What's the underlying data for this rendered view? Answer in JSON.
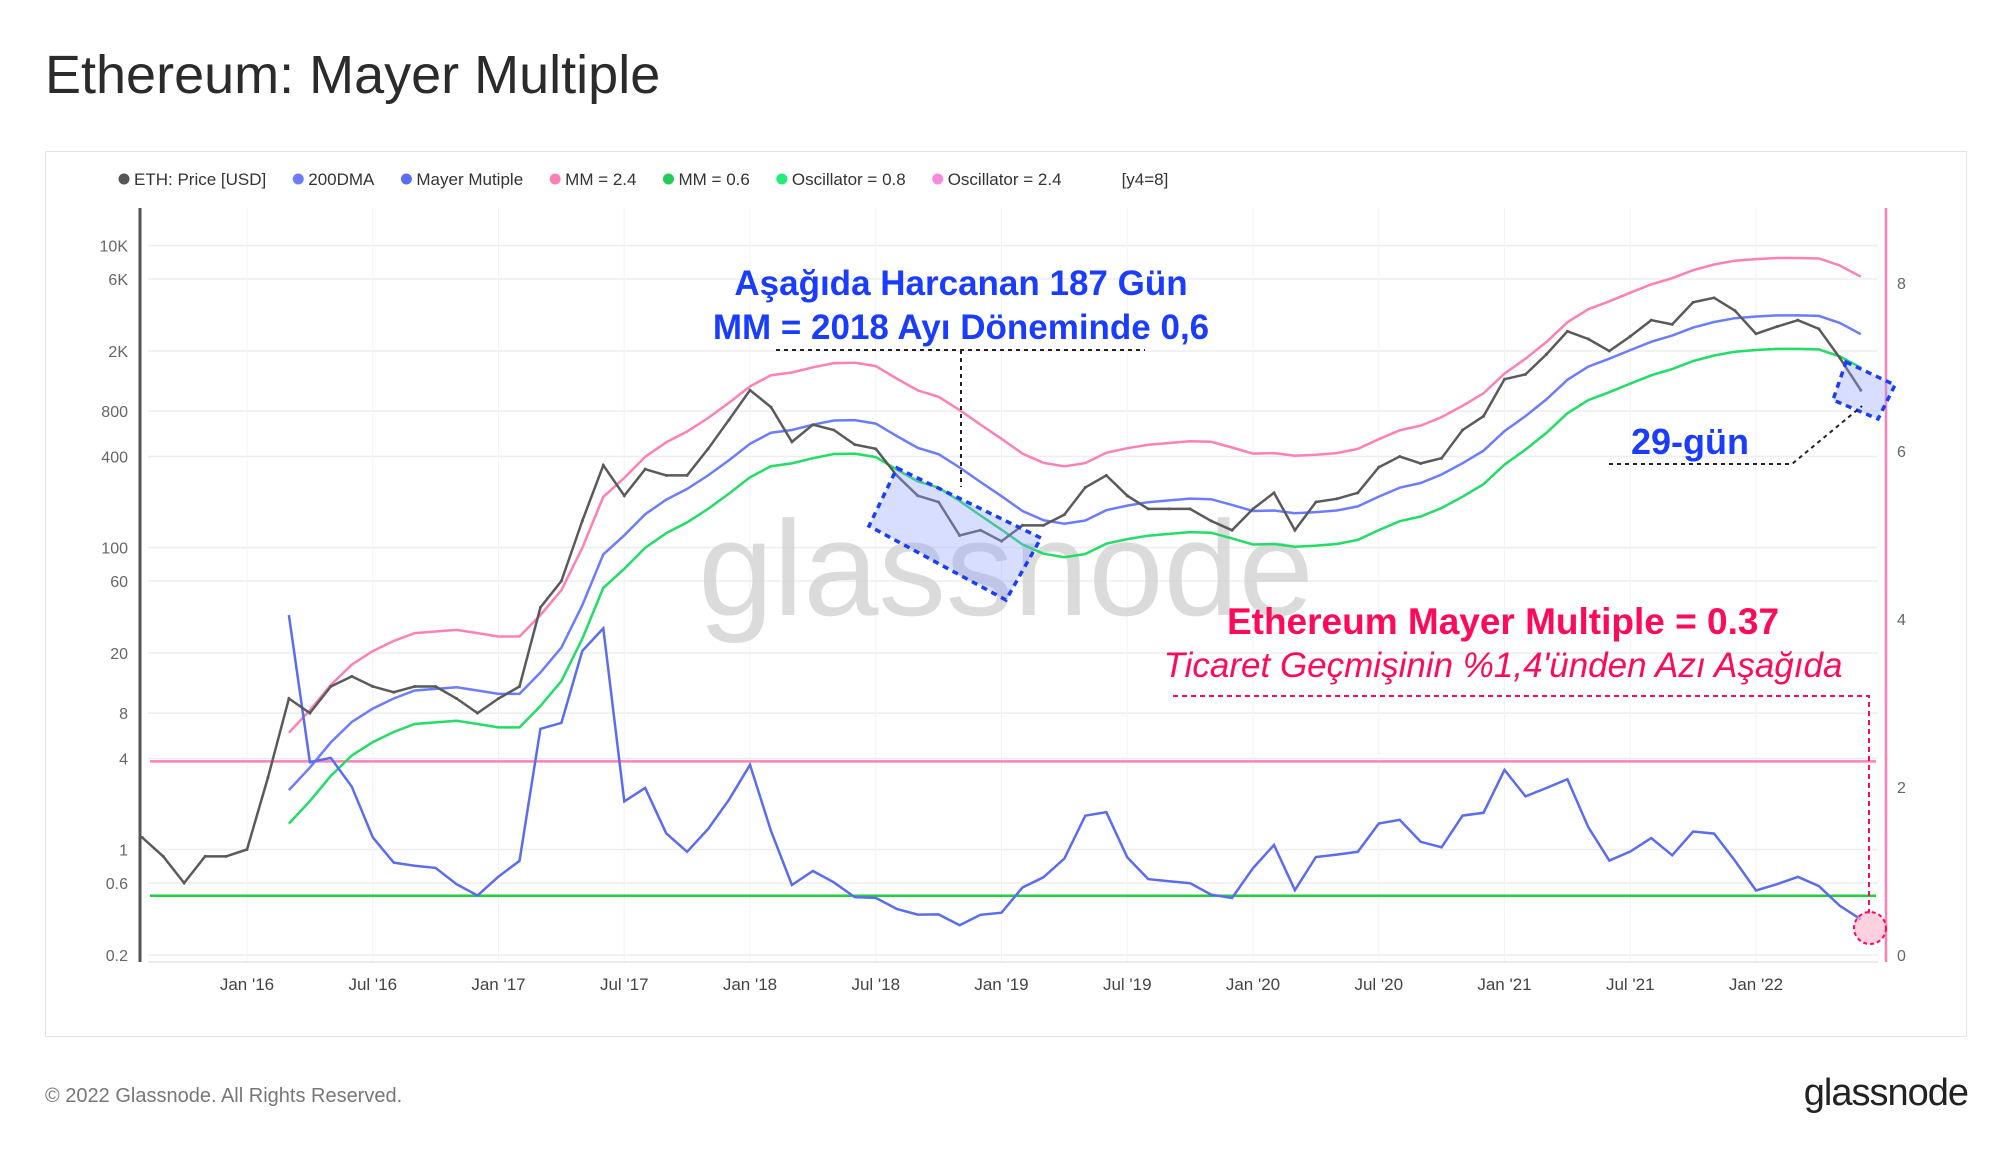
{
  "header": {
    "title": "Ethereum: Mayer Multiple"
  },
  "footer": {
    "copyright": "© 2022 Glassnode. All Rights Reserved.",
    "logo": "glassnode"
  },
  "watermark": "glassnode",
  "colors": {
    "price": "#5a5a5a",
    "dma": "#6b7cff",
    "mm": "#5a6cf0",
    "band_high": "#ff80b5",
    "band_low": "#22dd66",
    "osc_low": "#1fcf3c",
    "osc_high": "#ff80b5",
    "annot_blue": "#1a3cff",
    "annot_red": "#ff0a5a"
  },
  "annotations": {
    "blue_line1": "Aşağıda Harcanan 187 Gün",
    "blue_line2": "MM = 2018 Ayı Döneminde 0,6",
    "days_label": "29-gün",
    "red_line1": "Ethereum Mayer Multiple = 0.37",
    "red_line2": "Ticaret Geçmişinin %1,4'ünden Azı Aşağıda"
  },
  "chart_data": {
    "type": "line",
    "title": "Ethereum: Mayer Multiple",
    "legend": {
      "placement": "top-left",
      "items": [
        {
          "label": "ETH: Price [USD]",
          "color": "#555555"
        },
        {
          "label": "200DMA",
          "color": "#6b7cff"
        },
        {
          "label": "Mayer Mutiple",
          "color": "#5a6cf0"
        },
        {
          "label": "MM = 2.4",
          "color": "#ff80b5"
        },
        {
          "label": "MM = 0.6",
          "color": "#22cc55"
        },
        {
          "label": "Oscillator = 0.8",
          "color": "#22ee77"
        },
        {
          "label": "Oscillator = 2.4",
          "color": "#ff88dd"
        },
        {
          "label": "[y4=8]",
          "color": ""
        }
      ]
    },
    "y_left": {
      "scale": "log",
      "range": [
        0.2,
        10000
      ],
      "ticks": [
        "10K",
        "6K",
        "2K",
        "800",
        "400",
        "100",
        "60",
        "20",
        "8",
        "4",
        "1",
        "0.6",
        "0.2"
      ],
      "tick_values": [
        10000,
        6000,
        2000,
        800,
        400,
        100,
        60,
        20,
        8,
        4,
        1,
        0.6,
        0.2
      ]
    },
    "y_right": {
      "scale": "linear",
      "range": [
        0,
        8
      ],
      "ticks": [
        "8",
        "6",
        "4",
        "2",
        "0"
      ],
      "tick_values": [
        8,
        6,
        4,
        2,
        0
      ]
    },
    "x_ticks": [
      "Jan '16",
      "Jul '16",
      "Jan '17",
      "Jul '17",
      "Jan '18",
      "Jul '18",
      "Jan '19",
      "Jul '19",
      "Jan '20",
      "Jul '20",
      "Jan '21",
      "Jul '21",
      "Jan '22"
    ],
    "x_start": "2015-08",
    "x_end": "2022-06",
    "band_multipliers": {
      "high": 2.4,
      "low": 0.6
    },
    "oscillator_lines": {
      "low": 0.8,
      "high": 2.4
    },
    "current_mm": 0.37,
    "price_monthly": [
      1.2,
      0.9,
      0.6,
      0.9,
      0.9,
      1.0,
      3,
      10,
      8,
      12,
      14,
      12,
      11,
      12,
      12,
      10,
      8,
      10,
      12,
      40,
      60,
      150,
      350,
      220,
      330,
      300,
      300,
      450,
      700,
      1100,
      850,
      500,
      650,
      600,
      480,
      450,
      300,
      220,
      200,
      120,
      130,
      110,
      140,
      140,
      165,
      250,
      300,
      220,
      180,
      180,
      180,
      150,
      130,
      180,
      230,
      130,
      200,
      210,
      230,
      340,
      400,
      360,
      390,
      600,
      740,
      1300,
      1400,
      1900,
      2700,
      2400,
      2000,
      2500,
      3200,
      3000,
      4200,
      4500,
      3700,
      2600,
      2900,
      3200,
      2800,
      1800,
      1100
    ]
  }
}
